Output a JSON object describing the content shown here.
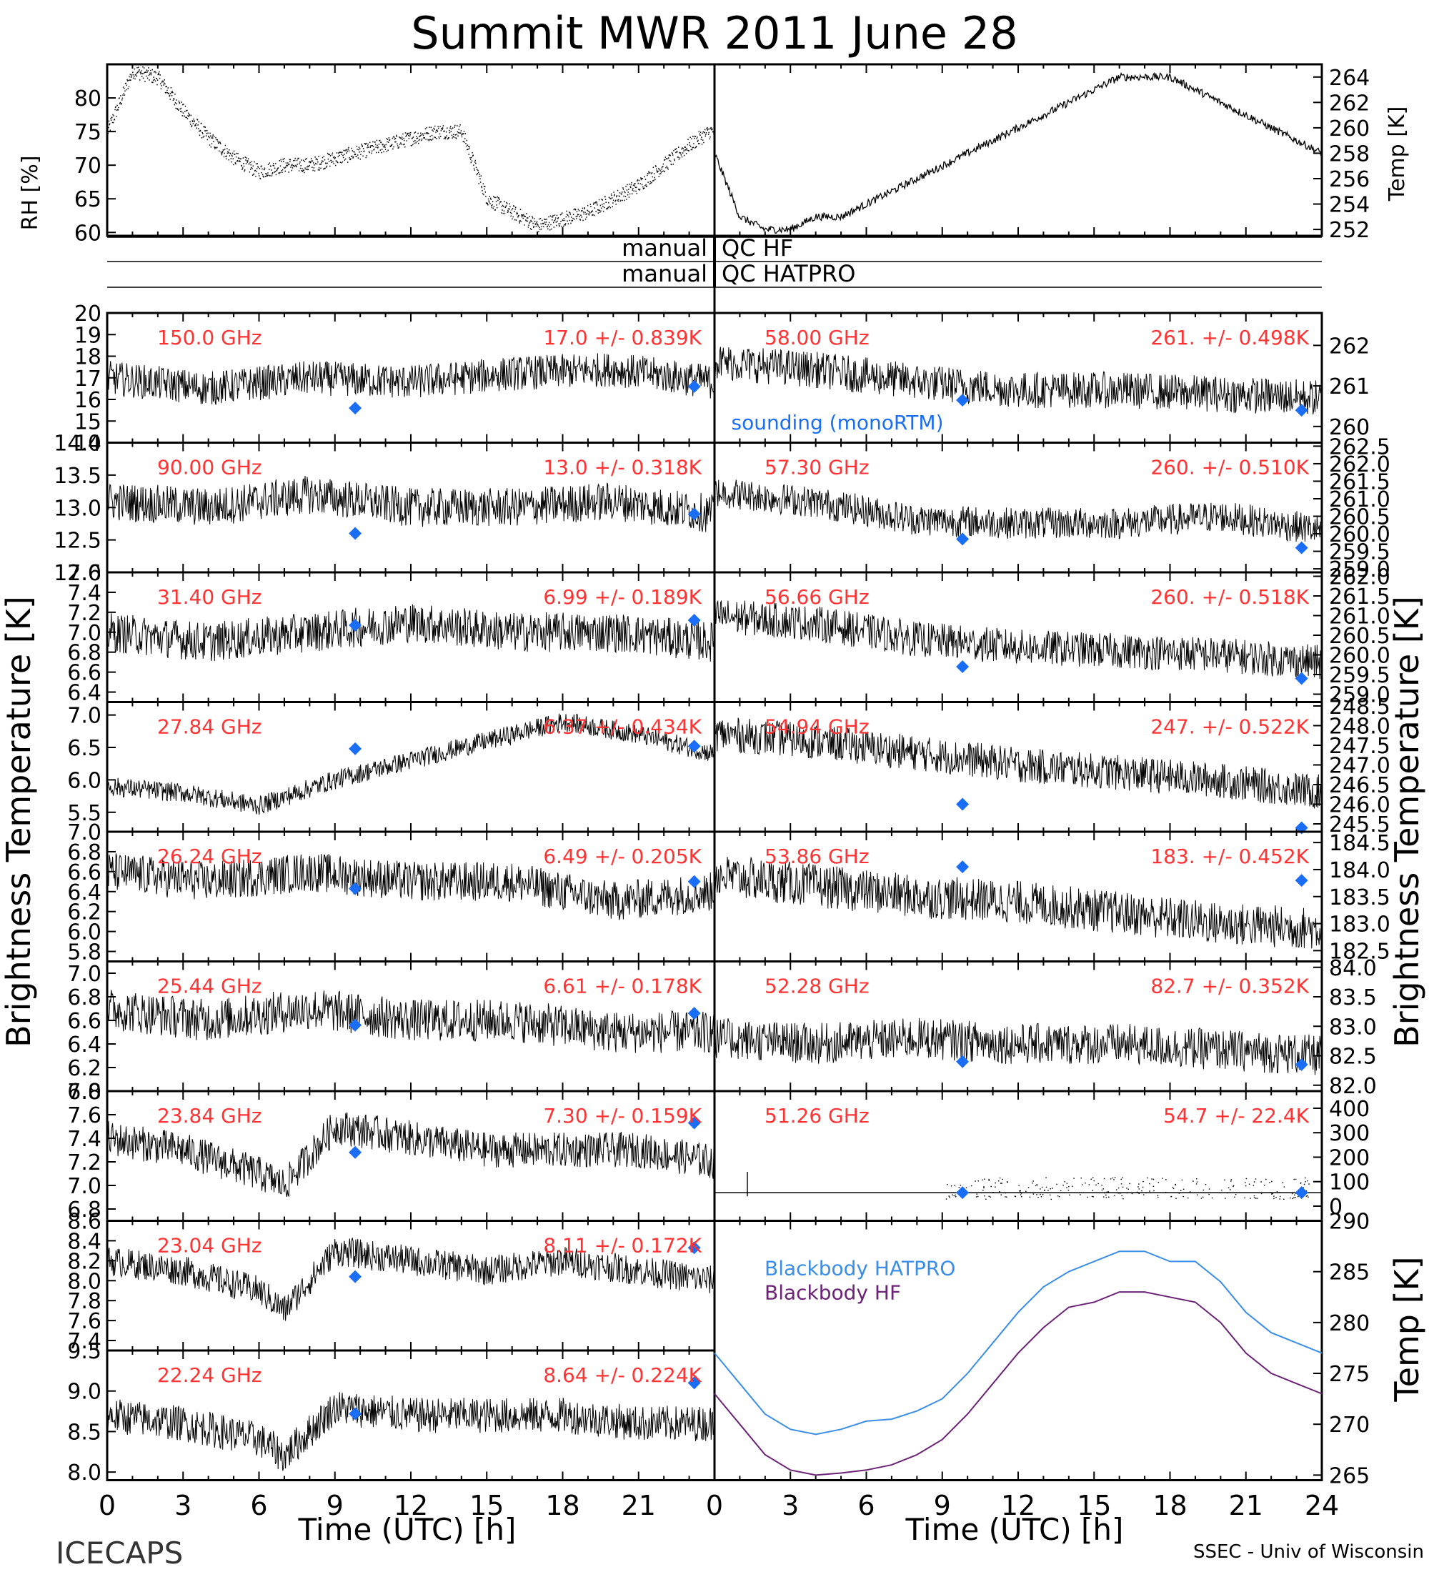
{
  "title": "Summit MWR 2011 June 28",
  "footer": {
    "left": "ICECAPS",
    "right": "SSEC - Univ of Wisconsin"
  },
  "qc": {
    "left_1": "manual",
    "right_1": "QC HF",
    "left_2": "manual",
    "right_2": "QC HATPRO"
  },
  "axis_titles": {
    "rh": "RH [%]",
    "temp_top": "Temp [K]",
    "tb_left": "Brightness Temperature [K]",
    "tb_right": "Brightness Temperature [K]",
    "bb_temp": "Temp [K]",
    "x_left": "Time (UTC) [h]",
    "x_right": "Time (UTC) [h]"
  },
  "x_ticks_left": [
    "0",
    "3",
    "6",
    "9",
    "12",
    "15",
    "18",
    "21"
  ],
  "x_ticks_right": [
    "0",
    "3",
    "6",
    "9",
    "12",
    "15",
    "18",
    "21",
    "24"
  ],
  "legend": {
    "sounding": "sounding (monoRTM)",
    "bb_hatpro": "Blackbody HATPRO",
    "bb_hf": "Blackbody HF"
  },
  "colors": {
    "label": "#ff3333",
    "sounding": "#1a6ef5",
    "bb_hatpro": "#3a8ee8",
    "bb_hf": "#6b2277",
    "trace": "#000000"
  },
  "chart_data": [
    {
      "id": "rh",
      "type": "scatter",
      "ylabel": "RH [%]",
      "ylim": [
        59.5,
        85
      ],
      "yticks": [
        "60",
        "65",
        "70",
        "75",
        "80"
      ],
      "x": [
        0,
        1,
        2,
        3,
        4,
        5,
        6,
        7,
        8,
        9,
        10,
        11,
        12,
        13,
        14,
        15,
        16,
        17,
        18,
        19,
        20,
        21,
        22,
        23,
        23.8
      ],
      "y": [
        75,
        84,
        83,
        78,
        74,
        71,
        69,
        70,
        70,
        71,
        72,
        73,
        74,
        75,
        75,
        65,
        63,
        61,
        62,
        63,
        65,
        67,
        70,
        73,
        75
      ]
    },
    {
      "id": "temp",
      "type": "line",
      "ylabel": "Temp [K]",
      "ylim": [
        251.5,
        265
      ],
      "yticks": [
        "252",
        "254",
        "256",
        "258",
        "260",
        "262",
        "264"
      ],
      "x": [
        0,
        1,
        2,
        3,
        4,
        5,
        6,
        7,
        8,
        9,
        10,
        11,
        12,
        13,
        14,
        15,
        16,
        17,
        18,
        19,
        20,
        21,
        22,
        23,
        24
      ],
      "y": [
        258,
        253,
        252,
        252,
        253,
        253,
        254,
        255,
        256,
        257,
        258,
        259,
        260,
        261,
        262,
        263,
        264,
        264,
        264,
        263,
        262,
        261,
        260,
        259,
        258
      ]
    },
    {
      "id": "ch150",
      "label": "150.0 GHz",
      "stats": "17.0 +/- 0.839K",
      "ylim": [
        14,
        20
      ],
      "yticks": [
        "14",
        "15",
        "16",
        "17",
        "18",
        "19",
        "20"
      ],
      "x": [
        0,
        4,
        8,
        12,
        16,
        20,
        24
      ],
      "y": [
        17,
        16.5,
        17,
        16.8,
        17.2,
        17.4,
        16.8
      ],
      "noise": 0.8,
      "sounding": [
        [
          9.8,
          15.6
        ],
        [
          23.2,
          16.6
        ]
      ]
    },
    {
      "id": "ch90",
      "label": "90.00 GHz",
      "stats": "13.0 +/- 0.318K",
      "ylim": [
        12,
        14
      ],
      "yticks": [
        "12.0",
        "12.5",
        "13.0",
        "13.5",
        "14.0"
      ],
      "x": [
        0,
        4,
        8,
        12,
        16,
        20,
        24
      ],
      "y": [
        13.1,
        13,
        13.2,
        13,
        13,
        13.1,
        12.9
      ],
      "noise": 0.3,
      "sounding": [
        [
          9.8,
          12.6
        ],
        [
          23.2,
          12.9
        ]
      ]
    },
    {
      "id": "ch3140",
      "label": "31.40 GHz",
      "stats": "6.99 +/- 0.189K",
      "ylim": [
        6.3,
        7.6
      ],
      "yticks": [
        "6.4",
        "6.6",
        "6.8",
        "7.0",
        "7.2",
        "7.4",
        "7.6"
      ],
      "x": [
        0,
        4,
        8,
        12,
        16,
        20,
        24
      ],
      "y": [
        7,
        6.9,
        7,
        7.1,
        7,
        7,
        6.9
      ],
      "noise": 0.2,
      "sounding": [
        [
          9.8,
          7.07
        ],
        [
          23.2,
          7.12
        ]
      ]
    },
    {
      "id": "ch2784",
      "label": "27.84 GHz",
      "stats": "6.37 +/- 0.434K",
      "ylim": [
        5.2,
        7.2
      ],
      "yticks": [
        "5.5",
        "6.0",
        "6.5",
        "7.0"
      ],
      "x": [
        0,
        3,
        6,
        9,
        12,
        15,
        18,
        21,
        24
      ],
      "y": [
        5.9,
        5.8,
        5.6,
        6,
        6.3,
        6.6,
        6.9,
        6.7,
        6.4
      ],
      "noise": 0.15,
      "sounding": [
        [
          9.8,
          6.48
        ],
        [
          23.2,
          6.52
        ]
      ]
    },
    {
      "id": "ch2624",
      "label": "26.24 GHz",
      "stats": "6.49 +/- 0.205K",
      "ylim": [
        5.7,
        7.0
      ],
      "yticks": [
        "5.8",
        "6.0",
        "6.2",
        "6.4",
        "6.6",
        "6.8",
        "7.0"
      ],
      "x": [
        0,
        4,
        8,
        12,
        16,
        20,
        24
      ],
      "y": [
        6.6,
        6.5,
        6.6,
        6.5,
        6.5,
        6.3,
        6.4
      ],
      "noise": 0.2,
      "sounding": [
        [
          9.8,
          6.43
        ],
        [
          23.2,
          6.5
        ]
      ]
    },
    {
      "id": "ch2544",
      "label": "25.44 GHz",
      "stats": "6.61 +/- 0.178K",
      "ylim": [
        6.0,
        7.1
      ],
      "yticks": [
        "6.0",
        "6.2",
        "6.4",
        "6.6",
        "6.8",
        "7.0"
      ],
      "x": [
        0,
        4,
        8,
        12,
        16,
        20,
        24
      ],
      "y": [
        6.7,
        6.6,
        6.7,
        6.6,
        6.6,
        6.5,
        6.5
      ],
      "noise": 0.18,
      "sounding": [
        [
          9.8,
          6.56
        ],
        [
          23.2,
          6.66
        ]
      ]
    },
    {
      "id": "ch2384",
      "label": "23.84 GHz",
      "stats": "7.30 +/- 0.159K",
      "ylim": [
        6.7,
        7.8
      ],
      "yticks": [
        "6.8",
        "7.0",
        "7.2",
        "7.4",
        "7.6",
        "7.8"
      ],
      "x": [
        0,
        3,
        6,
        7,
        9,
        12,
        15,
        18,
        21,
        24
      ],
      "y": [
        7.4,
        7.3,
        7.1,
        7,
        7.5,
        7.4,
        7.3,
        7.3,
        7.3,
        7.2
      ],
      "noise": 0.15,
      "sounding": [
        [
          9.8,
          7.28
        ],
        [
          23.2,
          7.53
        ]
      ]
    },
    {
      "id": "ch2304",
      "label": "23.04 GHz",
      "stats": "8.11 +/- 0.172K",
      "ylim": [
        7.3,
        8.6
      ],
      "yticks": [
        "7.4",
        "7.6",
        "7.8",
        "8.0",
        "8.2",
        "8.4",
        "8.6"
      ],
      "x": [
        0,
        3,
        6,
        7,
        9,
        12,
        15,
        18,
        21,
        24
      ],
      "y": [
        8.2,
        8.1,
        7.9,
        7.7,
        8.3,
        8.2,
        8.1,
        8.2,
        8.1,
        8
      ],
      "noise": 0.15,
      "sounding": [
        [
          9.8,
          8.04
        ],
        [
          23.2,
          8.33
        ]
      ]
    },
    {
      "id": "ch2224",
      "label": "22.24 GHz",
      "stats": "8.64 +/- 0.224K",
      "ylim": [
        7.9,
        9.5
      ],
      "yticks": [
        "8.0",
        "8.5",
        "9.0",
        "9.5"
      ],
      "x": [
        0,
        3,
        6,
        7,
        9,
        12,
        15,
        18,
        21,
        24
      ],
      "y": [
        8.7,
        8.6,
        8.4,
        8.2,
        8.8,
        8.7,
        8.7,
        8.7,
        8.6,
        8.6
      ],
      "noise": 0.22,
      "sounding": [
        [
          9.8,
          8.72
        ],
        [
          23.2,
          9.1
        ]
      ]
    },
    {
      "id": "ch5800",
      "label": "58.00 GHz",
      "stats": "261. +/- 0.498K",
      "ylim": [
        259.6,
        262.8
      ],
      "yticks": [
        "260",
        "261",
        "262"
      ],
      "x": [
        0,
        4,
        8,
        12,
        16,
        20,
        24
      ],
      "y": [
        261.6,
        261.4,
        261.1,
        260.9,
        260.9,
        260.8,
        260.7
      ],
      "noise": 0.45,
      "sounding": [
        [
          9.8,
          260.65
        ],
        [
          23.2,
          260.4
        ]
      ]
    },
    {
      "id": "ch5730",
      "label": "57.30 GHz",
      "stats": "260. +/- 0.510K",
      "ylim": [
        258.9,
        262.6
      ],
      "yticks": [
        "259.0",
        "259.5",
        "260.0",
        "260.5",
        "261.0",
        "261.5",
        "262.0",
        "262.5"
      ],
      "x": [
        0,
        4,
        8,
        12,
        16,
        20,
        24
      ],
      "y": [
        261.2,
        260.9,
        260.4,
        260.3,
        260.3,
        260.5,
        260.1
      ],
      "noise": 0.45,
      "sounding": [
        [
          9.8,
          259.85
        ],
        [
          23.2,
          259.6
        ]
      ]
    },
    {
      "id": "ch5666",
      "label": "56.66 GHz",
      "stats": "260. +/- 0.518K",
      "ylim": [
        258.8,
        262.1
      ],
      "yticks": [
        "259.0",
        "259.5",
        "260.0",
        "260.5",
        "261.0",
        "261.5",
        "262.0"
      ],
      "x": [
        0,
        4,
        8,
        12,
        16,
        20,
        24
      ],
      "y": [
        261,
        260.8,
        260.4,
        260.2,
        260.1,
        260,
        259.8
      ],
      "noise": 0.45,
      "sounding": [
        [
          9.8,
          259.7
        ],
        [
          23.2,
          259.4
        ]
      ]
    },
    {
      "id": "ch5494",
      "label": "54.94 GHz",
      "stats": "247. +/- 0.522K",
      "ylim": [
        245.3,
        248.6
      ],
      "yticks": [
        "245.5",
        "246.0",
        "246.5",
        "247.0",
        "247.5",
        "248.0",
        "248.5"
      ],
      "x": [
        0,
        4,
        8,
        12,
        16,
        20,
        24
      ],
      "y": [
        247.8,
        247.6,
        247.3,
        247,
        246.8,
        246.6,
        246.3
      ],
      "noise": 0.45,
      "sounding": [
        [
          9.8,
          246
        ],
        [
          23.2,
          245.4
        ]
      ]
    },
    {
      "id": "ch5386",
      "label": "53.86 GHz",
      "stats": "183. +/- 0.452K",
      "ylim": [
        182.3,
        184.7
      ],
      "yticks": [
        "182.5",
        "183.0",
        "183.5",
        "184.0",
        "184.5"
      ],
      "x": [
        0,
        4,
        8,
        12,
        16,
        20,
        24
      ],
      "y": [
        183.9,
        183.7,
        183.5,
        183.4,
        183.2,
        183,
        182.9
      ],
      "noise": 0.4,
      "sounding": [
        [
          9.8,
          184.05
        ],
        [
          23.2,
          183.8
        ]
      ]
    },
    {
      "id": "ch5228",
      "label": "52.28 GHz",
      "stats": "82.7 +/- 0.352K",
      "ylim": [
        81.9,
        84.1
      ],
      "yticks": [
        "82.0",
        "82.5",
        "83.0",
        "83.5",
        "84.0"
      ],
      "x": [
        0,
        4,
        8,
        12,
        16,
        20,
        24
      ],
      "y": [
        82.8,
        82.7,
        82.8,
        82.7,
        82.7,
        82.6,
        82.5
      ],
      "noise": 0.35,
      "sounding": [
        [
          9.8,
          82.4
        ],
        [
          23.2,
          82.35
        ]
      ]
    },
    {
      "id": "ch5126",
      "label": "51.26 GHz",
      "stats": "54.7 +/- 22.4K",
      "ylim": [
        -60,
        470
      ],
      "yticks": [
        "0",
        "100",
        "200",
        "300",
        "400"
      ],
      "x": [
        0,
        24
      ],
      "y": [
        55,
        55
      ],
      "noise": 0,
      "spikes": true,
      "sounding": [
        [
          9.8,
          55
        ],
        [
          23.2,
          55
        ]
      ]
    },
    {
      "id": "blackbody",
      "type": "line",
      "ylabel": "Temp [K]",
      "ylim": [
        264.5,
        290
      ],
      "yticks": [
        "265",
        "270",
        "275",
        "280",
        "285",
        "290"
      ],
      "x": [
        0,
        1,
        2,
        3,
        4,
        5,
        6,
        7,
        8,
        9,
        10,
        11,
        12,
        13,
        14,
        15,
        16,
        17,
        18,
        19,
        20,
        21,
        22,
        23,
        24
      ],
      "series": [
        {
          "name": "Blackbody HATPRO",
          "y": [
            277,
            274,
            271,
            269.5,
            269,
            269.5,
            270.3,
            270.5,
            271.3,
            272.5,
            275,
            278,
            281,
            283.5,
            285,
            286,
            287,
            287,
            286,
            286,
            284,
            281,
            279,
            278,
            277
          ]
        },
        {
          "name": "Blackbody HF",
          "y": [
            273,
            270,
            267,
            265.5,
            265,
            265.2,
            265.5,
            266,
            267,
            268.5,
            271,
            274,
            277,
            279.5,
            281.5,
            282,
            283,
            283,
            282.5,
            282,
            280,
            277,
            275,
            274,
            273
          ]
        }
      ]
    }
  ]
}
